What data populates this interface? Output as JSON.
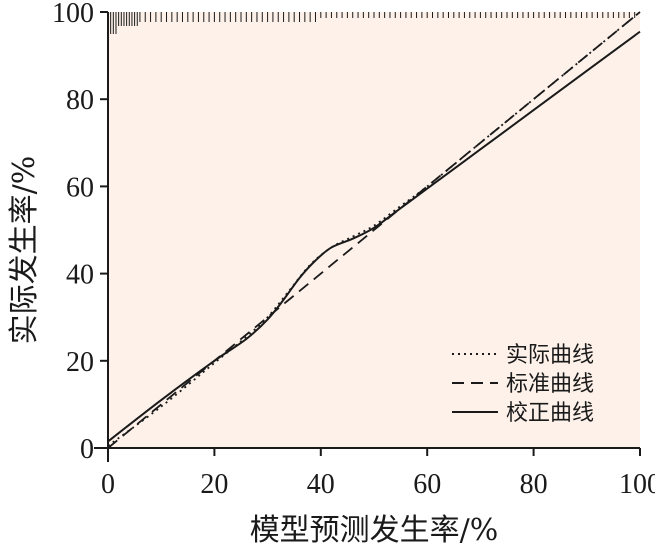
{
  "chart_data": {
    "type": "line",
    "xlabel": "模型预测发生率/%",
    "ylabel": "实际发生率/%",
    "xlim": [
      0,
      100
    ],
    "ylim": [
      0,
      100
    ],
    "xticks": [
      "0",
      "20",
      "40",
      "60",
      "80",
      "100"
    ],
    "yticks": [
      "0",
      "20",
      "40",
      "60",
      "80",
      "100"
    ],
    "grid": false,
    "legend_position": "bottom-right",
    "background": "#fdf1ea",
    "rug": [
      0.5,
      1,
      1.5,
      2,
      2.5,
      3,
      3.5,
      4,
      4.5,
      5,
      5.5,
      6,
      7,
      8,
      9,
      10,
      11,
      12,
      13,
      14,
      15,
      16,
      17,
      18,
      19,
      20,
      21,
      22,
      23,
      24,
      25,
      26,
      27,
      28,
      29,
      30,
      31,
      32,
      33,
      34,
      35,
      36,
      37,
      38,
      39,
      40,
      41,
      42,
      43,
      44,
      45,
      46,
      47,
      48,
      49,
      50,
      51,
      52,
      53,
      54,
      55,
      56,
      57,
      58,
      59,
      60,
      61,
      62,
      63,
      64,
      65,
      66,
      67,
      68,
      69,
      70,
      71,
      72,
      73,
      74,
      75,
      76,
      77,
      78,
      79,
      80,
      81,
      82,
      83,
      84,
      85,
      86,
      87,
      88,
      89,
      90,
      91,
      92,
      93,
      94,
      95,
      96,
      97,
      98,
      99
    ],
    "series": [
      {
        "name": "实际曲线",
        "style": "dotted",
        "color": "#1a1a1a",
        "x": [
          0,
          10,
          20,
          26,
          30,
          34,
          38,
          42,
          46,
          50,
          55,
          60,
          70,
          80,
          90,
          100
        ],
        "y": [
          0.5,
          9.5,
          19.5,
          25.5,
          30,
          36,
          42,
          46,
          48.5,
          51,
          55.5,
          60,
          70,
          80,
          90,
          100
        ]
      },
      {
        "name": "标准曲线",
        "style": "dashed",
        "color": "#1a1a1a",
        "x": [
          0,
          100
        ],
        "y": [
          0,
          100
        ]
      },
      {
        "name": "校正曲线",
        "style": "solid",
        "color": "#1a1a1a",
        "x": [
          0,
          10,
          20,
          26,
          30,
          33,
          36,
          39,
          42,
          46,
          50,
          55,
          60,
          70,
          80,
          90,
          100
        ],
        "y": [
          1.5,
          11,
          20,
          25,
          29.5,
          34,
          39,
          43,
          46,
          48,
          50.5,
          55,
          59.5,
          68.5,
          77.5,
          86.5,
          95.5
        ]
      }
    ]
  }
}
